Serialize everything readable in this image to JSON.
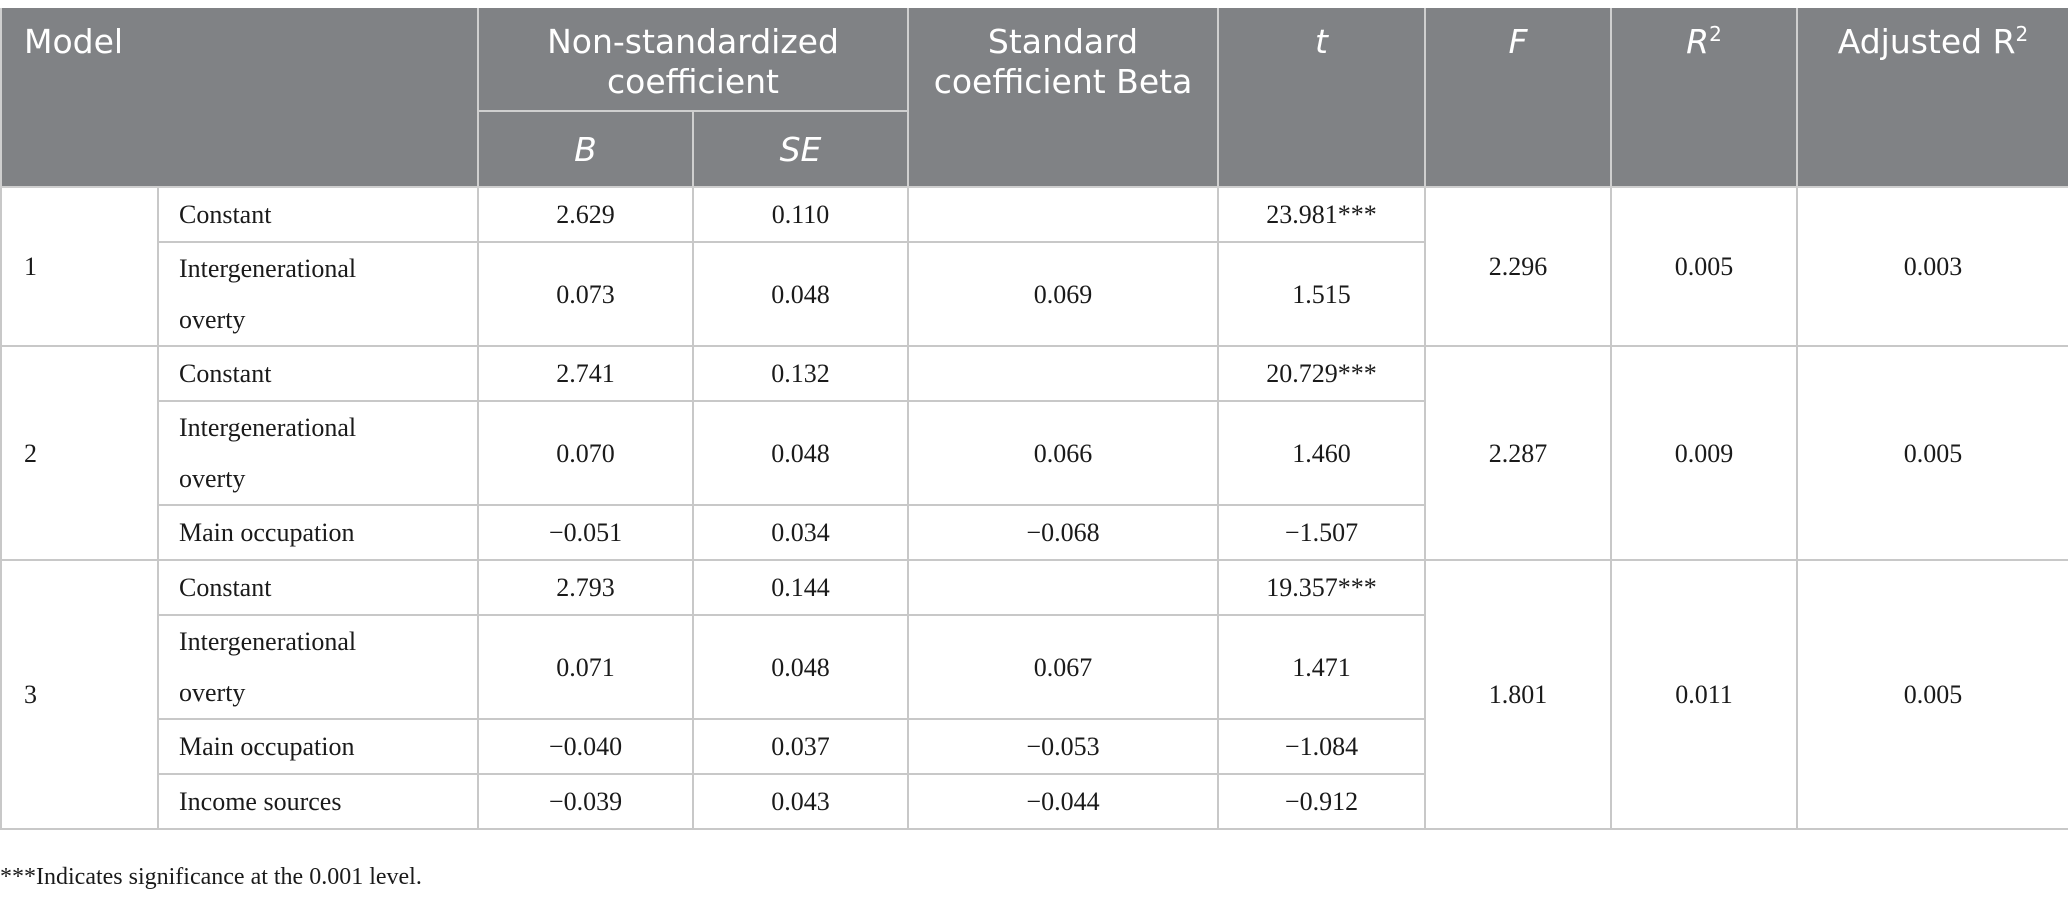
{
  "headers": {
    "model": "Model",
    "non_std": "Non-standardized coefficient",
    "b": "B",
    "se": "SE",
    "std": "Standard coefficient Beta",
    "t": "t",
    "f": "F",
    "r2_base": "R",
    "r2_sup": "2",
    "adj_r2_base": "Adjusted R",
    "adj_r2_sup": "2"
  },
  "models": [
    {
      "id": "1",
      "F": "2.296",
      "R2": "0.005",
      "adjR2": "0.003",
      "rows": [
        {
          "var": "Constant",
          "B": "2.629",
          "SE": "0.110",
          "Beta": "",
          "t": "23.981***"
        },
        {
          "var_line1": "Intergenerational",
          "var_line2": "overty",
          "B": "0.073",
          "SE": "0.048",
          "Beta": "0.069",
          "t": "1.515"
        }
      ]
    },
    {
      "id": "2",
      "F": "2.287",
      "R2": "0.009",
      "adjR2": "0.005",
      "rows": [
        {
          "var": "Constant",
          "B": "2.741",
          "SE": "0.132",
          "Beta": "",
          "t": "20.729***"
        },
        {
          "var_line1": "Intergenerational",
          "var_line2": "overty",
          "B": "0.070",
          "SE": "0.048",
          "Beta": "0.066",
          "t": "1.460"
        },
        {
          "var": "Main occupation",
          "B": "−0.051",
          "SE": "0.034",
          "Beta": "−0.068",
          "t": "−1.507"
        }
      ]
    },
    {
      "id": "3",
      "F": "1.801",
      "R2": "0.011",
      "adjR2": "0.005",
      "rows": [
        {
          "var": "Constant",
          "B": "2.793",
          "SE": "0.144",
          "Beta": "",
          "t": "19.357***"
        },
        {
          "var_line1": "Intergenerational",
          "var_line2": "overty",
          "B": "0.071",
          "SE": "0.048",
          "Beta": "0.067",
          "t": "1.471"
        },
        {
          "var": "Main occupation",
          "B": "−0.040",
          "SE": "0.037",
          "Beta": "−0.053",
          "t": "−1.084"
        },
        {
          "var": "Income sources",
          "B": "−0.039",
          "SE": "0.043",
          "Beta": "−0.044",
          "t": "−0.912"
        }
      ]
    }
  ],
  "footnote": "***Indicates significance at the 0.001 level.",
  "colors": {
    "header_bg": "#808285",
    "header_text": "#ffffff",
    "border": "#c8c8c8"
  }
}
